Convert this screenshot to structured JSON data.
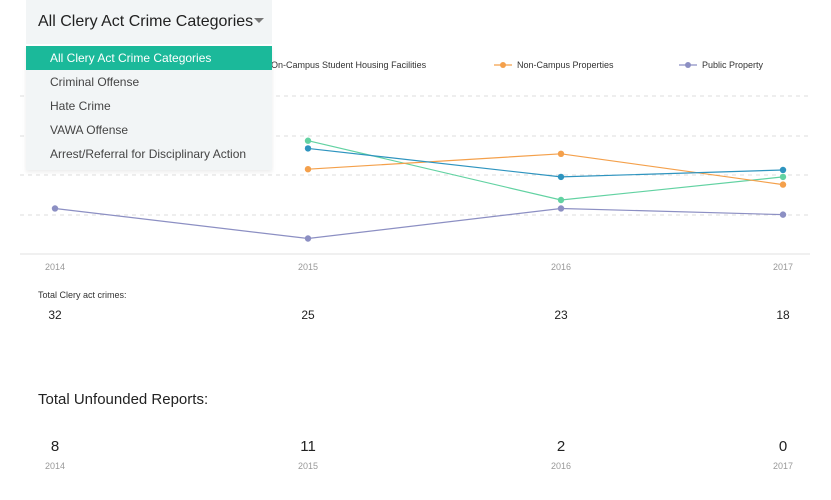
{
  "dropdown": {
    "selected": "All Clery Act Crime Categories",
    "options": [
      "All Clery Act Crime Categories",
      "Criminal Offense",
      "Hate Crime",
      "VAWA Offense",
      "Arrest/Referral for Disciplinary Action"
    ]
  },
  "chart_data": {
    "type": "line",
    "x": [
      "2014",
      "2015",
      "2016",
      "2017"
    ],
    "series": [
      {
        "name": "On-Campus Student Housing Facilities",
        "color": "#62d2a2",
        "values": [
          null,
          14.5,
          6.8,
          9.8
        ]
      },
      {
        "name": "Non-Campus Properties",
        "color": "#f4a04b",
        "values": [
          null,
          10.8,
          12.8,
          8.8
        ]
      },
      {
        "name": "Public Property",
        "color": "#8c8fc3",
        "values": [
          5.7,
          1.8,
          5.7,
          4.9
        ]
      },
      {
        "name": "",
        "color": "#2e94bf",
        "values": [
          null,
          13.5,
          9.8,
          10.7
        ]
      }
    ],
    "grid": true,
    "legend": "top"
  },
  "totals": {
    "caption": "Total Clery act crimes:",
    "values": [
      "32",
      "25",
      "23",
      "18"
    ]
  },
  "unfounded": {
    "title": "Total Unfounded Reports:",
    "values": [
      "8",
      "11",
      "2",
      "0"
    ],
    "years": [
      "2014",
      "2015",
      "2016",
      "2017"
    ]
  }
}
